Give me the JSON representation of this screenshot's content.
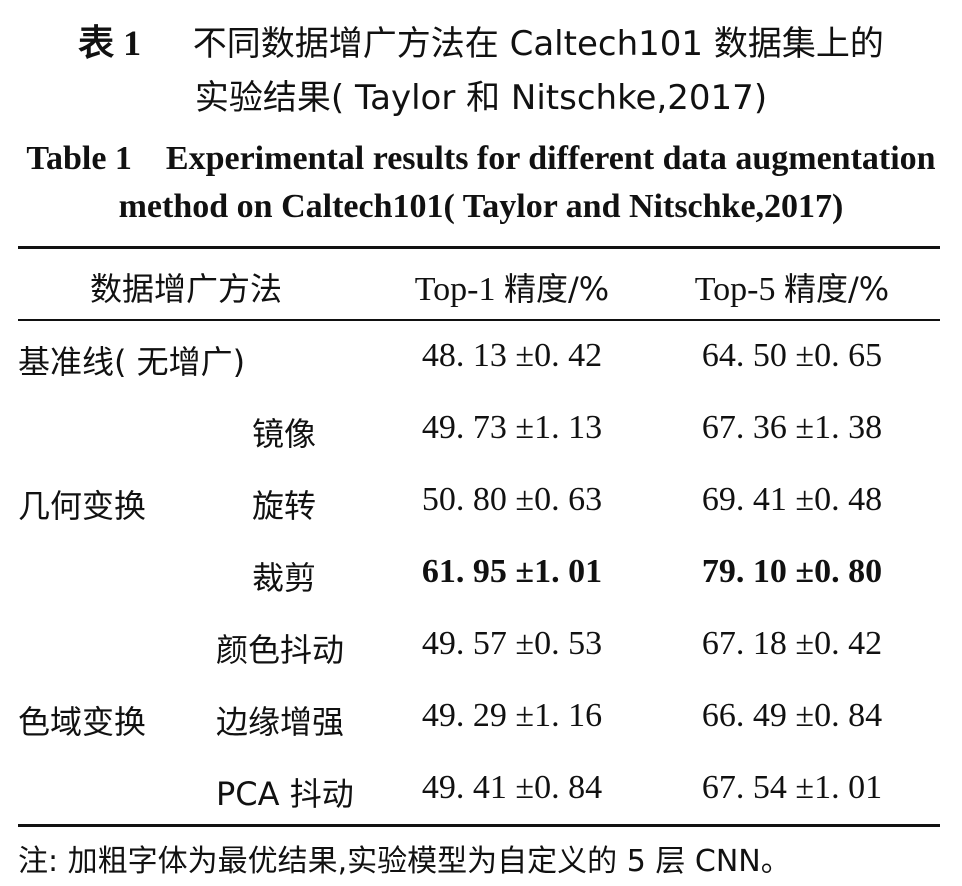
{
  "caption": {
    "cn_line1_prefix": "表 1",
    "cn_line1_text": "不同数据增广方法在 Caltech101 数据集上的",
    "cn_line2": "实验结果( Taylor 和 Nitschke,2017)",
    "en_line1": "Table 1　Experimental results for different data augmentation",
    "en_line2": "method on Caltech101( Taylor and Nitschke,2017)"
  },
  "table": {
    "headers": {
      "method": "数据增广方法",
      "top1_prefix": "Top-1 ",
      "top1_suffix": "精度/%",
      "top5_prefix": "Top-5 ",
      "top5_suffix": "精度/%"
    },
    "rows": [
      {
        "group": "基准线( 无增广)",
        "method": "",
        "top1": "48. 13 ±0. 42",
        "top5": "64. 50 ±0. 65",
        "bold": false
      },
      {
        "group": "",
        "method": "镜像",
        "top1": "49. 73 ±1. 13",
        "top5": "67. 36 ±1. 38",
        "bold": false
      },
      {
        "group": "几何变换",
        "method": "旋转",
        "top1": "50. 80 ±0. 63",
        "top5": "69. 41 ±0. 48",
        "bold": false
      },
      {
        "group": "",
        "method": "裁剪",
        "top1": "61. 95 ±1. 01",
        "top5": "79. 10 ±0. 80",
        "bold": true
      },
      {
        "group": "",
        "method": "颜色抖动",
        "top1": "49. 57 ±0. 53",
        "top5": "67. 18 ±0. 42",
        "bold": false
      },
      {
        "group": "色域变换",
        "method": "边缘增强",
        "top1": "49. 29 ±1. 16",
        "top5": "66. 49 ±0. 84",
        "bold": false
      },
      {
        "group": "",
        "method": "PCA 抖动",
        "top1": "49. 41 ±0. 84",
        "top5": "67. 54 ±1. 01",
        "bold": false
      }
    ]
  },
  "note": "注: 加粗字体为最优结果,实验模型为自定义的 5 层 CNN。"
}
